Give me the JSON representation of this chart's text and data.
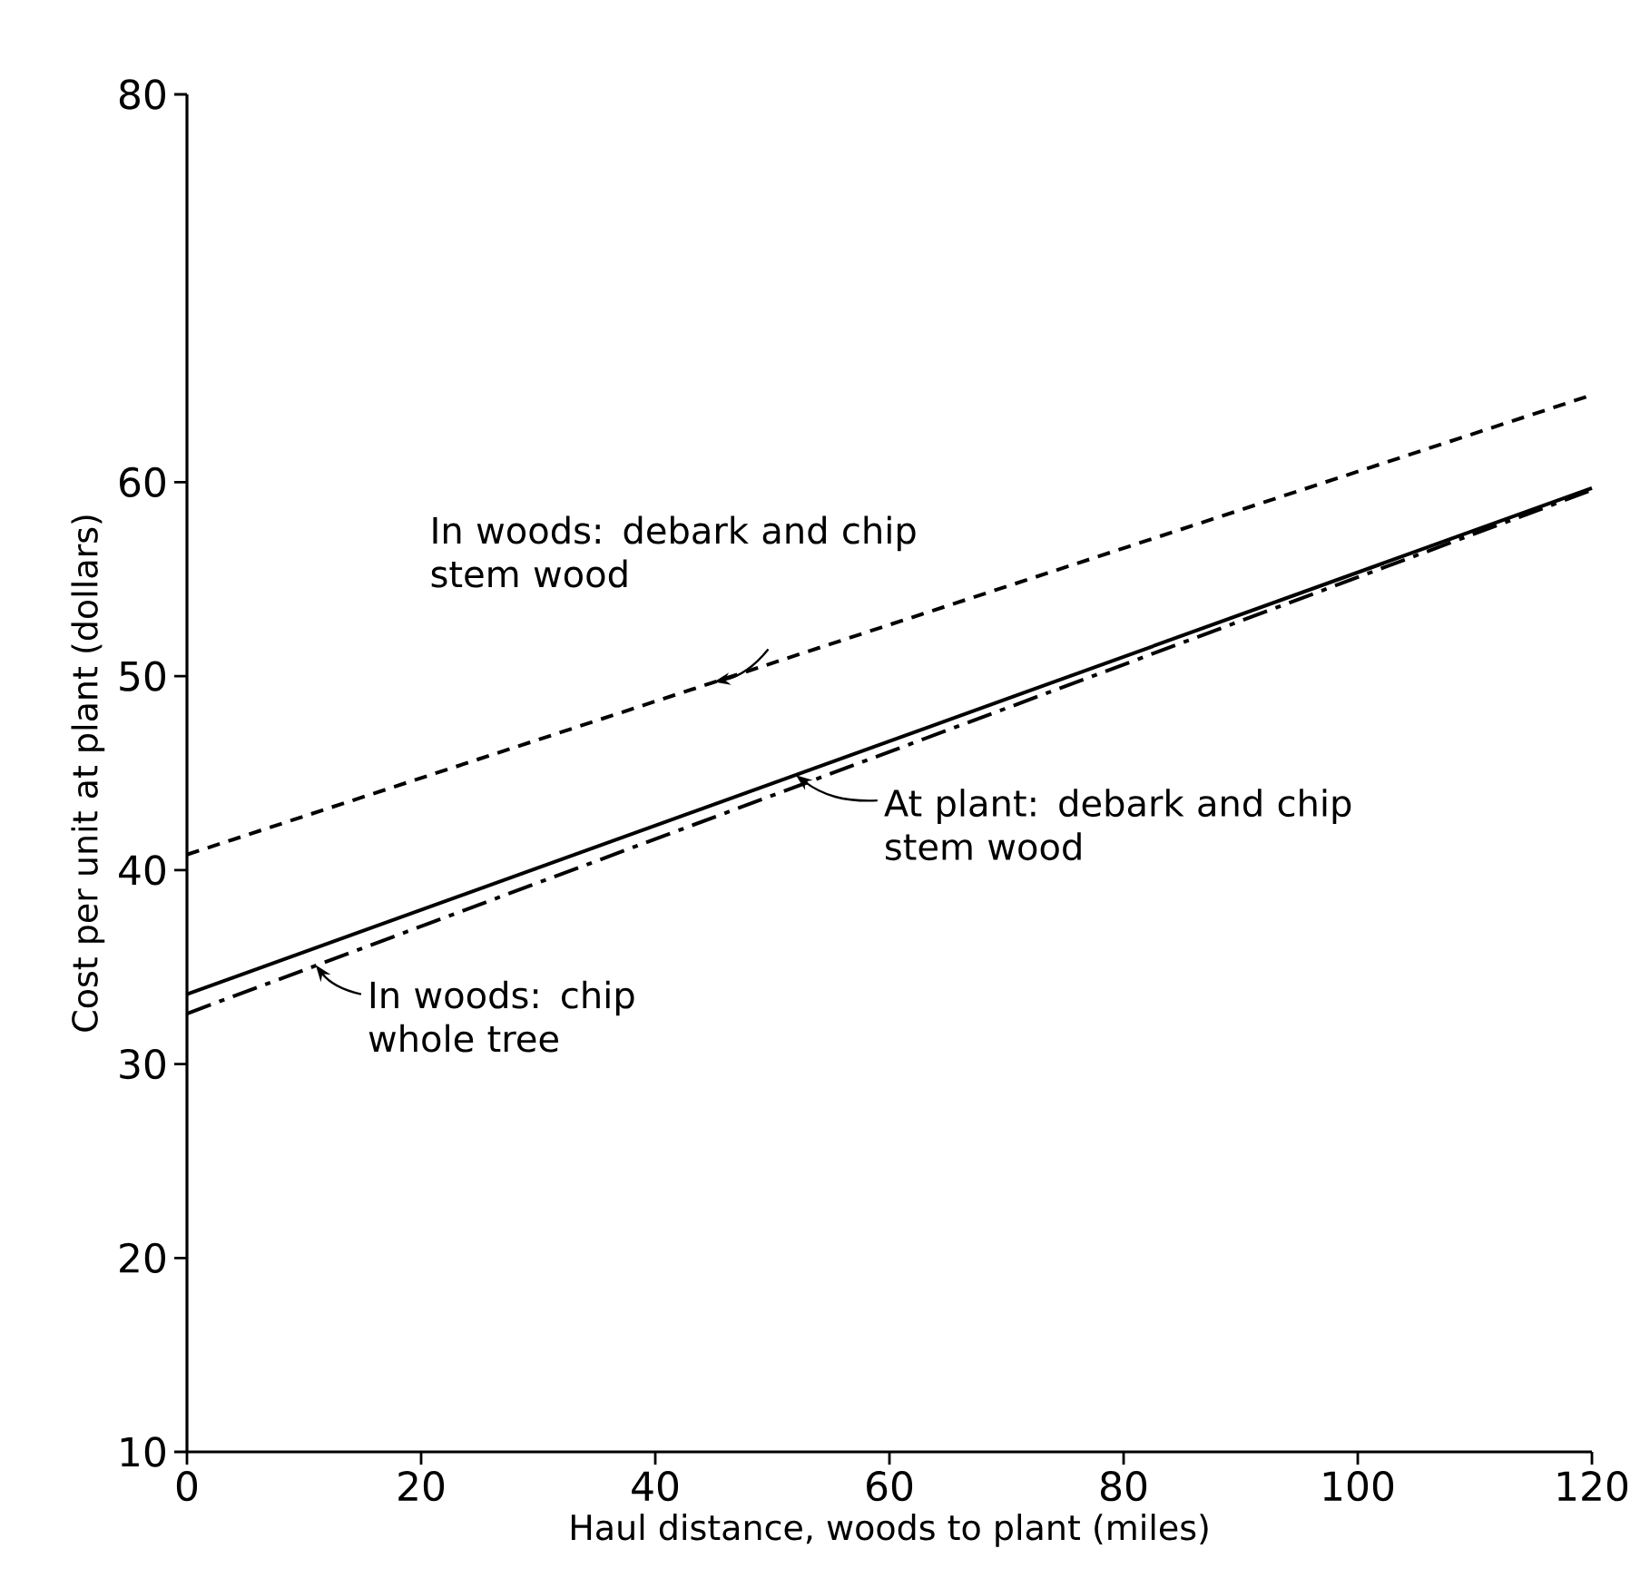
{
  "chart_data": {
    "type": "line",
    "xlabel": "Haul distance, woods to plant (miles)",
    "ylabel": "Cost per unit at plant (dollars)",
    "xlim": [
      0,
      120
    ],
    "ylim": [
      10,
      80
    ],
    "xticks": [
      0,
      20,
      40,
      60,
      80,
      100,
      120
    ],
    "yticks": [
      10,
      20,
      30,
      40,
      50,
      60,
      80
    ],
    "x": [
      0,
      120
    ],
    "grid": false,
    "marker": "none",
    "series": [
      {
        "values": [
          40.8,
          64.5
        ],
        "color": "#000000",
        "line_style": "dashed"
      },
      {
        "values": [
          33.6,
          59.7
        ],
        "color": "#000000",
        "line_style": "solid"
      },
      {
        "values": [
          32.6,
          59.6
        ],
        "color": "#000000",
        "line_style": "dashdot"
      }
    ],
    "annotations": [
      {
        "text": "In woods: debark and chip stem wood",
        "x": 45,
        "y": 49.7
      },
      {
        "text": "At plant: debark and chip stem wood",
        "x": 52,
        "y": 44.9
      },
      {
        "text": "In woods: chip whole tree",
        "x": 11,
        "y": 35.1
      }
    ]
  }
}
